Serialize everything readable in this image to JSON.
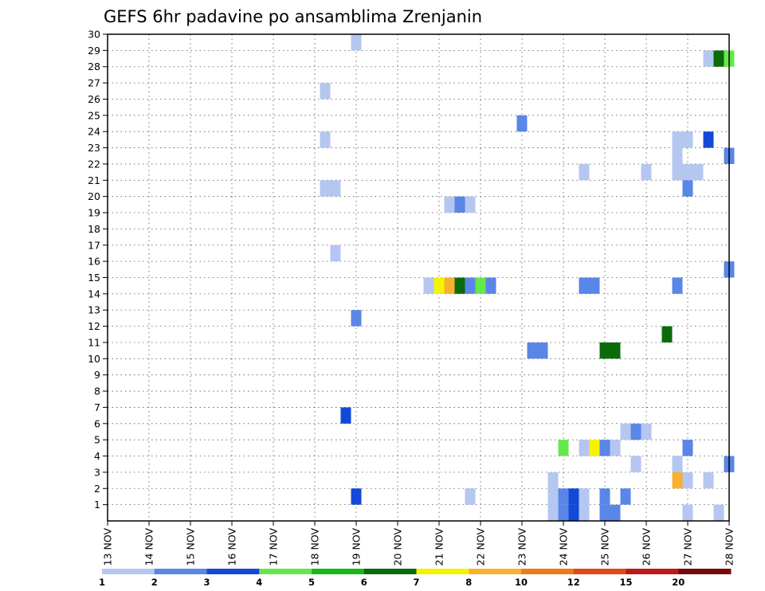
{
  "chart_data": {
    "type": "heatmap",
    "title": "GEFS 6hr padavine po ansamblima Zrenjanin",
    "x_ticks": [
      "13 NOV",
      "14 NOV",
      "15 NOV",
      "16 NOV",
      "17 NOV",
      "18 NOV",
      "19 NOV",
      "20 NOV",
      "21 NOV",
      "22 NOV",
      "23 NOV",
      "24 NOV",
      "25 NOV",
      "26 NOV",
      "27 NOV",
      "28 NOV"
    ],
    "y_ticks": [
      "1",
      "2",
      "3",
      "4",
      "5",
      "6",
      "7",
      "8",
      "9",
      "10",
      "11",
      "12",
      "13",
      "14",
      "15",
      "16",
      "17",
      "18",
      "19",
      "20",
      "21",
      "22",
      "23",
      "24",
      "25",
      "26",
      "27",
      "28",
      "29",
      "30"
    ],
    "xlim": [
      0,
      15
    ],
    "ylim": [
      0,
      30
    ],
    "grid": true,
    "legend": {
      "position": "bottom",
      "labels": [
        "1",
        "2",
        "3",
        "4",
        "5",
        "6",
        "7",
        "8",
        "10",
        "12",
        "15",
        "20"
      ],
      "colors": [
        "#b5c6f0",
        "#5a86e8",
        "#1448d8",
        "#66e84a",
        "#16b81a",
        "#0b6b0b",
        "#f4f400",
        "#f8b030",
        "#f07818",
        "#e04818",
        "#c01818",
        "#7a0a0a"
      ]
    },
    "cells": [
      {
        "x": 6.0,
        "y": 30,
        "level": 1
      },
      {
        "x": 14.5,
        "y": 29,
        "level": 1
      },
      {
        "x": 14.75,
        "y": 29,
        "level": 6
      },
      {
        "x": 15.0,
        "y": 29,
        "level": 4
      },
      {
        "x": 5.25,
        "y": 27,
        "level": 1
      },
      {
        "x": 10.0,
        "y": 25,
        "level": 2
      },
      {
        "x": 5.25,
        "y": 24,
        "level": 1
      },
      {
        "x": 13.75,
        "y": 24,
        "level": 1
      },
      {
        "x": 14.0,
        "y": 24,
        "level": 1
      },
      {
        "x": 14.5,
        "y": 24,
        "level": 3
      },
      {
        "x": 13.75,
        "y": 23,
        "level": 1
      },
      {
        "x": 15.0,
        "y": 23,
        "level": 2
      },
      {
        "x": 11.5,
        "y": 22,
        "level": 1
      },
      {
        "x": 13.0,
        "y": 22,
        "level": 1
      },
      {
        "x": 13.75,
        "y": 22,
        "level": 1
      },
      {
        "x": 14.0,
        "y": 22,
        "level": 1
      },
      {
        "x": 14.25,
        "y": 22,
        "level": 1
      },
      {
        "x": 5.25,
        "y": 21,
        "level": 1
      },
      {
        "x": 5.5,
        "y": 21,
        "level": 1
      },
      {
        "x": 14.0,
        "y": 21,
        "level": 2
      },
      {
        "x": 8.25,
        "y": 20,
        "level": 1
      },
      {
        "x": 8.5,
        "y": 20,
        "level": 2
      },
      {
        "x": 8.75,
        "y": 20,
        "level": 1
      },
      {
        "x": 5.5,
        "y": 17,
        "level": 1
      },
      {
        "x": 15.0,
        "y": 16,
        "level": 2
      },
      {
        "x": 7.75,
        "y": 15,
        "level": 1
      },
      {
        "x": 8.0,
        "y": 15,
        "level": 7
      },
      {
        "x": 8.25,
        "y": 15,
        "level": 8
      },
      {
        "x": 8.5,
        "y": 15,
        "level": 6
      },
      {
        "x": 8.75,
        "y": 15,
        "level": 2
      },
      {
        "x": 9.0,
        "y": 15,
        "level": 4
      },
      {
        "x": 9.25,
        "y": 15,
        "level": 2
      },
      {
        "x": 11.5,
        "y": 15,
        "level": 2
      },
      {
        "x": 11.75,
        "y": 15,
        "level": 2
      },
      {
        "x": 13.75,
        "y": 15,
        "level": 2
      },
      {
        "x": 6.0,
        "y": 13,
        "level": 2
      },
      {
        "x": 13.5,
        "y": 12,
        "level": 6
      },
      {
        "x": 10.25,
        "y": 11,
        "level": 2
      },
      {
        "x": 10.5,
        "y": 11,
        "level": 2
      },
      {
        "x": 12.0,
        "y": 11,
        "level": 6
      },
      {
        "x": 12.25,
        "y": 11,
        "level": 6
      },
      {
        "x": 5.75,
        "y": 7,
        "level": 3
      },
      {
        "x": 12.5,
        "y": 6,
        "level": 1
      },
      {
        "x": 12.75,
        "y": 6,
        "level": 2
      },
      {
        "x": 13.0,
        "y": 6,
        "level": 1
      },
      {
        "x": 11.0,
        "y": 5,
        "level": 4
      },
      {
        "x": 11.5,
        "y": 5,
        "level": 1
      },
      {
        "x": 11.75,
        "y": 5,
        "level": 7
      },
      {
        "x": 12.0,
        "y": 5,
        "level": 2
      },
      {
        "x": 12.25,
        "y": 5,
        "level": 1
      },
      {
        "x": 14.0,
        "y": 5,
        "level": 2
      },
      {
        "x": 12.75,
        "y": 4,
        "level": 1
      },
      {
        "x": 13.75,
        "y": 4,
        "level": 1
      },
      {
        "x": 15.0,
        "y": 4,
        "level": 2
      },
      {
        "x": 10.75,
        "y": 3,
        "level": 1
      },
      {
        "x": 13.75,
        "y": 3,
        "level": 8
      },
      {
        "x": 14.0,
        "y": 3,
        "level": 1
      },
      {
        "x": 14.5,
        "y": 3,
        "level": 1
      },
      {
        "x": 6.0,
        "y": 2,
        "level": 3
      },
      {
        "x": 8.75,
        "y": 2,
        "level": 1
      },
      {
        "x": 10.75,
        "y": 2,
        "level": 1
      },
      {
        "x": 11.0,
        "y": 2,
        "level": 2
      },
      {
        "x": 11.25,
        "y": 2,
        "level": 3
      },
      {
        "x": 11.5,
        "y": 2,
        "level": 1
      },
      {
        "x": 12.0,
        "y": 2,
        "level": 2
      },
      {
        "x": 12.5,
        "y": 2,
        "level": 2
      },
      {
        "x": 10.75,
        "y": 1,
        "level": 1
      },
      {
        "x": 11.0,
        "y": 1,
        "level": 2
      },
      {
        "x": 11.25,
        "y": 1,
        "level": 3
      },
      {
        "x": 11.5,
        "y": 1,
        "level": 1
      },
      {
        "x": 12.0,
        "y": 1,
        "level": 2
      },
      {
        "x": 12.25,
        "y": 1,
        "level": 2
      },
      {
        "x": 14.0,
        "y": 1,
        "level": 1
      },
      {
        "x": 14.75,
        "y": 1,
        "level": 1
      }
    ]
  }
}
